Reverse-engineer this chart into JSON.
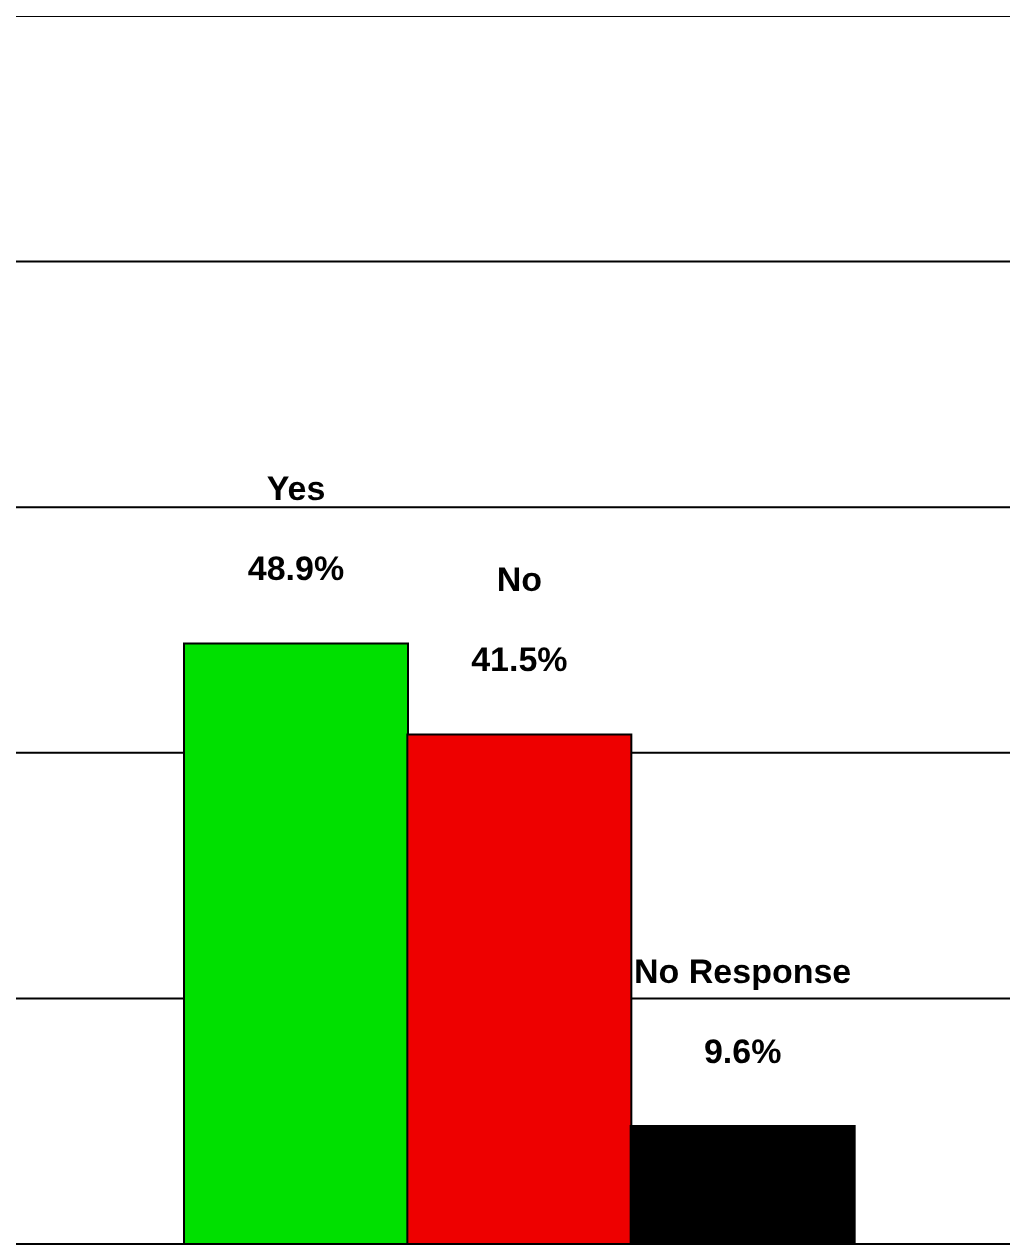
{
  "chart_data": {
    "type": "bar",
    "categories": [
      "Yes",
      "No",
      "No Response"
    ],
    "values": [
      48.9,
      41.5,
      9.6
    ],
    "colors": [
      "#00e000",
      "#ee0000",
      "#000000"
    ],
    "value_labels": [
      "48.9%",
      "41.5%",
      "9.6%"
    ],
    "ylim": [
      0,
      100
    ],
    "yticks": [
      {
        "value": 0,
        "label": null
      },
      {
        "value": 20,
        "label": null
      },
      {
        "value": 40,
        "label": null
      },
      {
        "value": 60,
        "label": null
      },
      {
        "value": 80,
        "label": null
      },
      {
        "value": 100,
        "label": null
      }
    ],
    "grid": "y",
    "tick_labels": false
  }
}
